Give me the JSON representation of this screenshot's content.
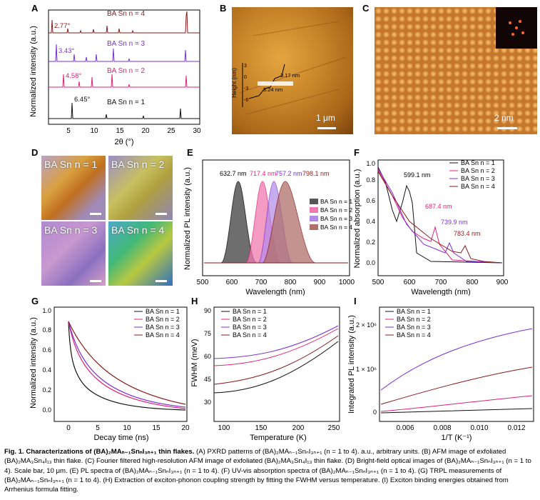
{
  "panels": {
    "A": {
      "label": "A",
      "ylabel": "Normalized intensity (a.u.)",
      "xlabel": "2θ (°)",
      "xticks": [
        "5",
        "10",
        "15",
        "20",
        "25",
        "30"
      ],
      "curves": [
        {
          "name": "BA Sn n = 4",
          "peak": "2.77°",
          "color": "#8b1a1a"
        },
        {
          "name": "BA Sn n = 3",
          "peak": "3.43°",
          "color": "#7b2fd6"
        },
        {
          "name": "BA Sn n = 2",
          "peak": "4.58°",
          "color": "#e0207a"
        },
        {
          "name": "BA Sn n = 1",
          "peak": "6.45°",
          "color": "#111111"
        }
      ]
    },
    "B": {
      "label": "B",
      "ylabel": "Height (nm)",
      "yticks": [
        "3",
        "0",
        "-3",
        "-6"
      ],
      "step1": "3.17 nm",
      "step2": "3.24 nm",
      "scale": "1 μm"
    },
    "C": {
      "label": "C",
      "scale": "2 nm"
    },
    "D": {
      "label": "D",
      "tiles": [
        "BA Sn n = 1",
        "BA Sn n = 2",
        "BA Sn n = 3",
        "BA Sn n = 4"
      ]
    },
    "E": {
      "label": "E",
      "ylabel": "Normalized PL intensity (a.u.)",
      "xlabel": "Wavelength (nm)",
      "xticks": [
        "500",
        "600",
        "700",
        "800",
        "900",
        "1000"
      ],
      "peaks": [
        "632.7 nm",
        "717.4 nm",
        "757.2 nm",
        "798.1 nm"
      ],
      "legend": [
        "BA Sn n = 1",
        "BA Sn n = 2",
        "BA Sn n = 3",
        "BA Sn n = 4"
      ]
    },
    "F": {
      "label": "F",
      "ylabel": "Normalized absorption (a.u.)",
      "xlabel": "Wavelength (nm)",
      "xticks": [
        "500",
        "600",
        "700",
        "800",
        "900"
      ],
      "yticks": [
        "0.0",
        "0.2",
        "0.4",
        "0.6",
        "0.8",
        "1.0"
      ],
      "peaks": [
        "599.1 nm",
        "687.4 nm",
        "739.9 nm",
        "783.4 nm"
      ],
      "legend": [
        "BA Sn n = 1",
        "BA Sn n = 2",
        "BA Sn n = 3",
        "BA Sn n = 4"
      ]
    },
    "G": {
      "label": "G",
      "ylabel": "Normalized intensity (a.u.)",
      "xlabel": "Decay time (ns)",
      "xticks": [
        "0",
        "5",
        "10",
        "15",
        "20"
      ],
      "yticks": [
        "0.0",
        "0.2",
        "0.4",
        "0.6",
        "0.8",
        "1.0"
      ],
      "legend": [
        "BA Sn n = 1",
        "BA Sn n = 2",
        "BA Sn n = 3",
        "BA Sn n = 4"
      ]
    },
    "H": {
      "label": "H",
      "ylabel": "FWHM (meV)",
      "xlabel": "Temperature (K)",
      "xticks": [
        "100",
        "150",
        "200",
        "250"
      ],
      "yticks": [
        "30",
        "45",
        "60",
        "75",
        "90"
      ],
      "legend": [
        "BA Sn n = 1",
        "BA Sn n = 2",
        "BA Sn n = 3",
        "BA Sn n = 4"
      ]
    },
    "I": {
      "label": "I",
      "ylabel": "Integrated PL intensity (a.u.)",
      "xlabel": "1/T (K⁻¹)",
      "xticks": [
        "0.006",
        "0.008",
        "0.010",
        "0.012"
      ],
      "yticks": [
        "0",
        "1 × 10⁶",
        "2 × 10⁶"
      ],
      "legend": [
        "BA Sn n = 1",
        "BA Sn n = 2",
        "BA Sn n = 3",
        "BA Sn n = 4"
      ]
    }
  },
  "colors": {
    "n1": "#111111",
    "n2": "#e0207a",
    "n3": "#7b2fd6",
    "n4": "#8b1a1a"
  },
  "caption": {
    "title": "Fig. 1. Characterizations of (BA)₂MAₙ₋₁SnₙI₃ₙ₊₁ thin flakes.",
    "body": " (A) PXRD patterns of (BA)₂MAₙ₋₁SnₙI₃ₙ₊₁ (n = 1 to 4). a.u., arbitrary units. (B) AFM image of exfoliated (BA)₂MA₃Sn₄I₁₃ thin flake. (C) Fourier filtered high-resolution AFM image of exfoliated (BA)₂MA₃Sn₄I₁₃ thin flake. (D) Bright-field optical images of (BA)₂MAₙ₋₁SnₙI₃ₙ₊₁ (n = 1 to 4). Scale bar, 10 μm. (E) PL spectra of (BA)₂MAₙ₋₁SnₙI₃ₙ₊₁ (n = 1 to 4). (F) UV-vis absorption spectra of (BA)₂MAₙ₋₁SnₙI₃ₙ₊₁ (n = 1 to 4). (G) TRPL measurements of (BA)₂MAₙ₋₁SnₙI₃ₙ₊₁ (n = 1 to 4). (H) Extraction of exciton-phonon coupling strength by fitting the FWHM versus temperature. (I) Exciton binding energies obtained from Arrhenius formula fitting."
  }
}
